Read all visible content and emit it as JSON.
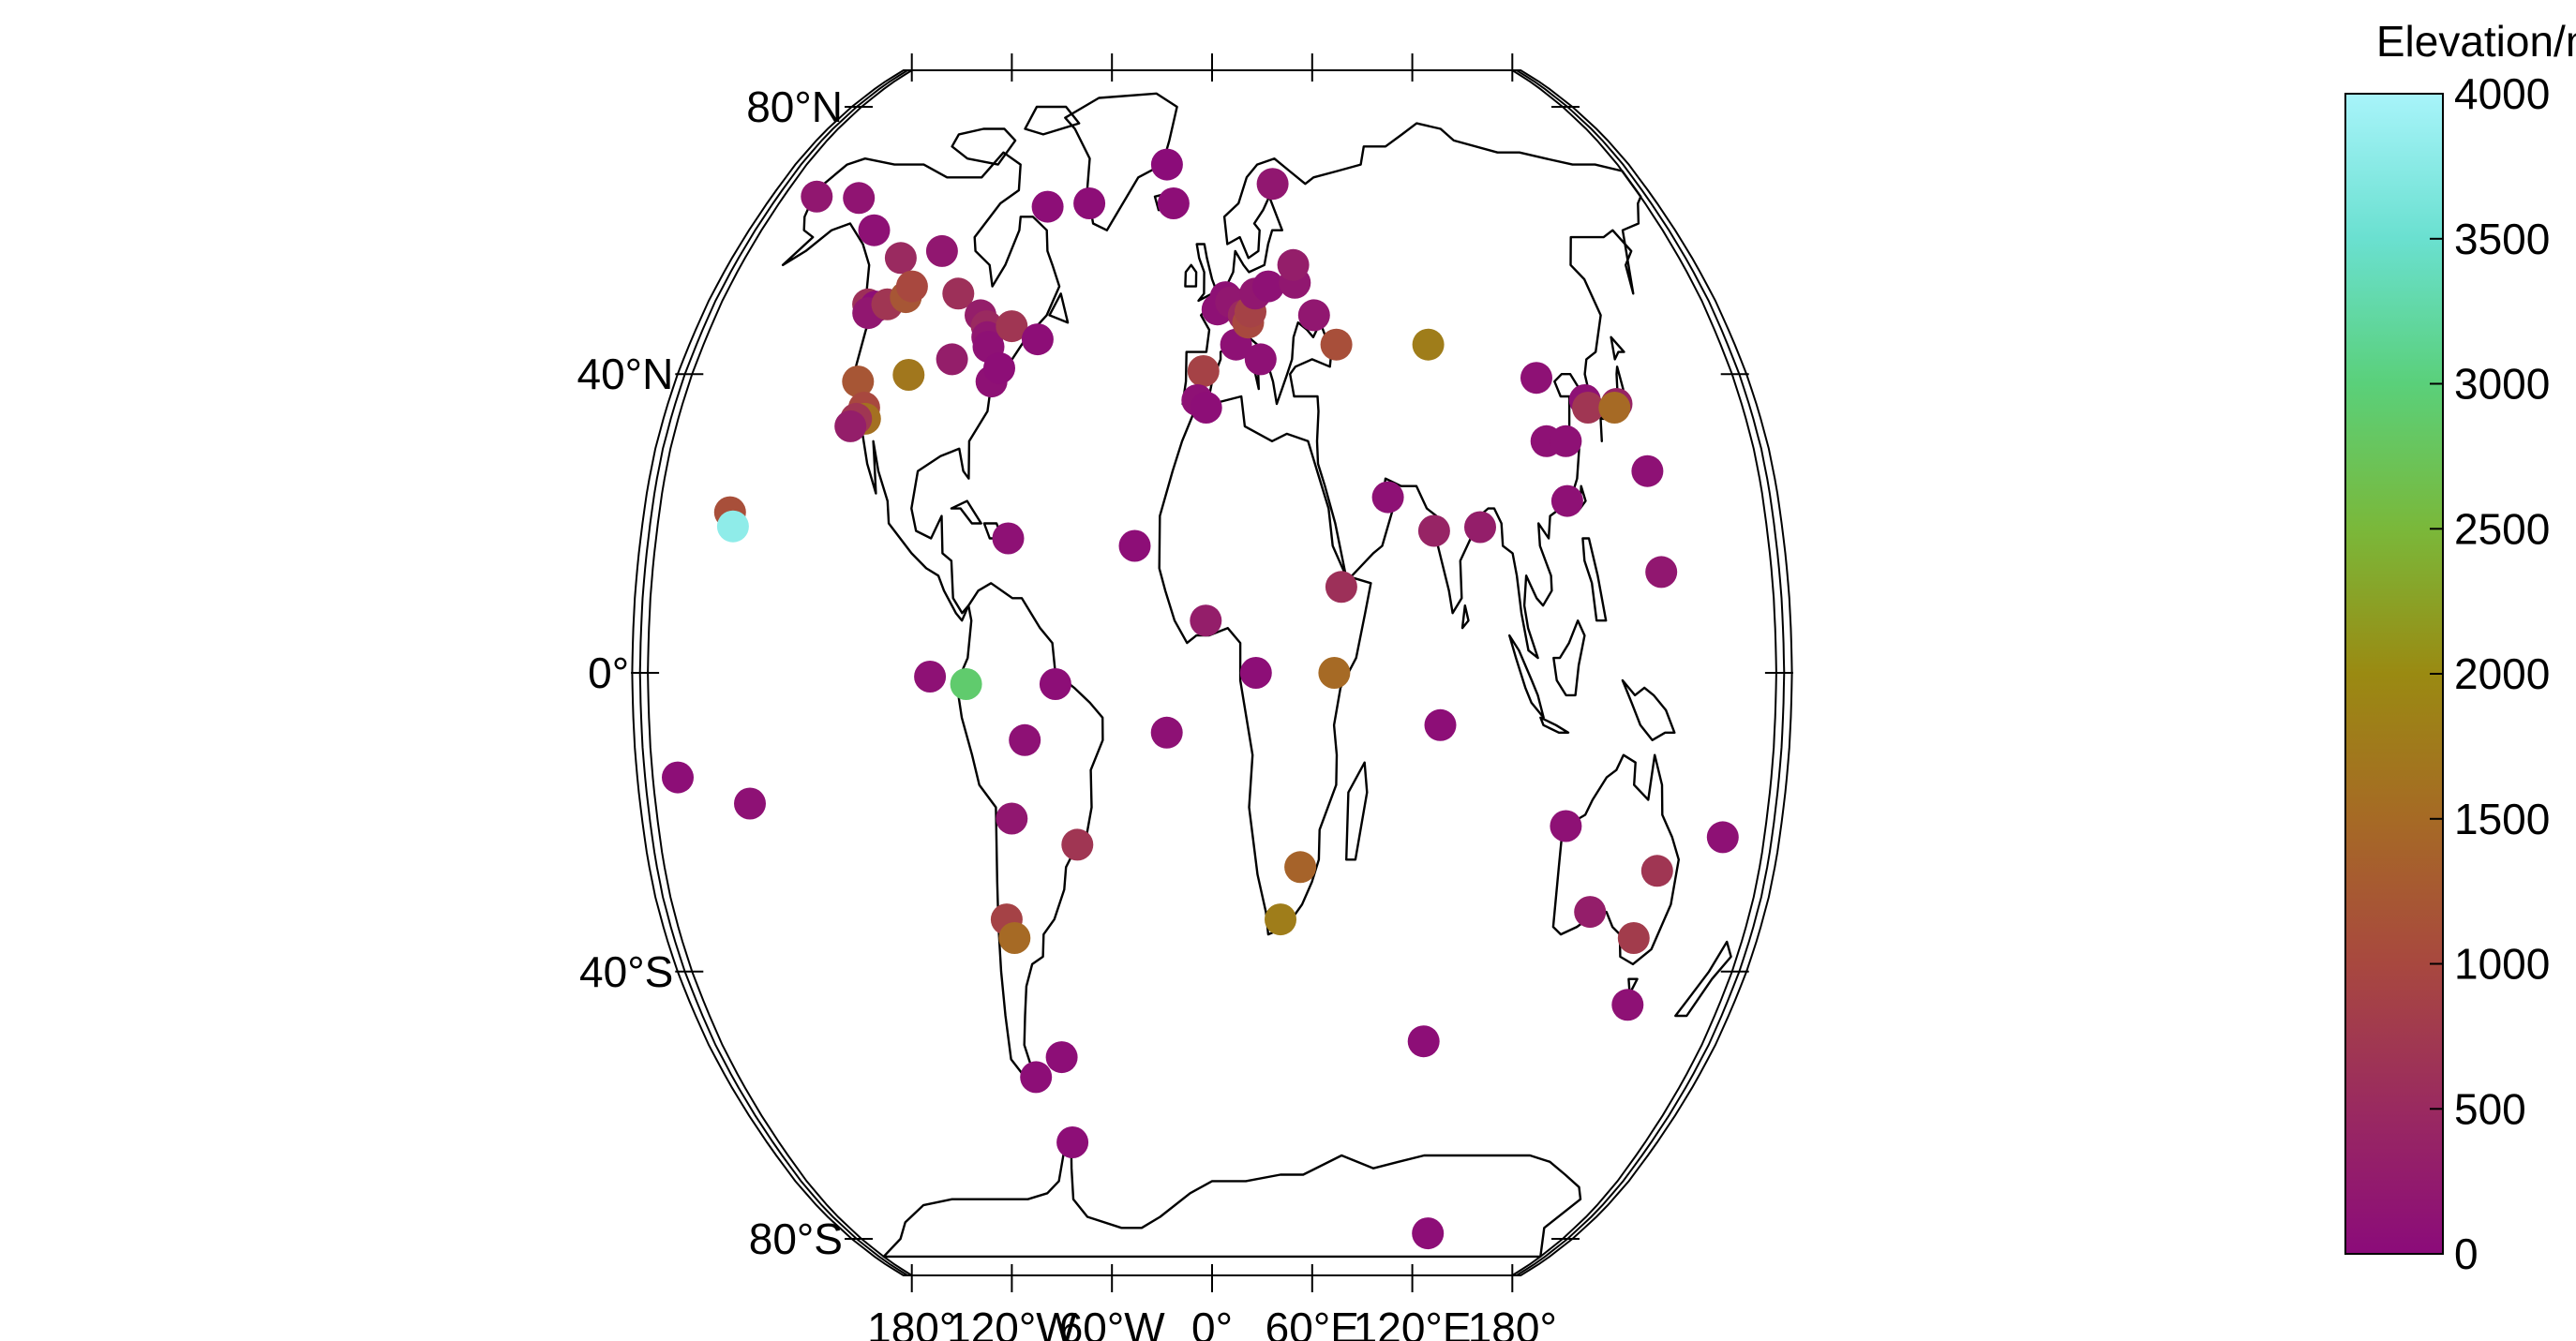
{
  "map": {
    "projection": "Robinson",
    "lat_labels": [
      {
        "lat": 80,
        "text": "80°N"
      },
      {
        "lat": 40,
        "text": "40°N"
      },
      {
        "lat": 0,
        "text": "0°"
      },
      {
        "lat": -40,
        "text": "40°S"
      },
      {
        "lat": -80,
        "text": "80°S"
      }
    ],
    "lon_labels": [
      {
        "lon": -180,
        "text": "180°"
      },
      {
        "lon": -120,
        "text": "120°W"
      },
      {
        "lon": -60,
        "text": "60°W"
      },
      {
        "lon": 0,
        "text": "0°"
      },
      {
        "lon": 60,
        "text": "60°E"
      },
      {
        "lon": 120,
        "text": "120°E"
      },
      {
        "lon": 180,
        "text": "180°"
      }
    ]
  },
  "colorbar": {
    "title": "Elevation/m",
    "min": 0,
    "max": 4000,
    "ticks": [
      {
        "value": 0,
        "text": "0"
      },
      {
        "value": 500,
        "text": "500"
      },
      {
        "value": 1000,
        "text": "1000"
      },
      {
        "value": 1500,
        "text": "1500"
      },
      {
        "value": 2000,
        "text": "2000"
      },
      {
        "value": 2500,
        "text": "2500"
      },
      {
        "value": 3000,
        "text": "3000"
      },
      {
        "value": 3500,
        "text": "3500"
      },
      {
        "value": 4000,
        "text": "4000"
      }
    ],
    "stops": [
      {
        "value": 0,
        "color": "#8b0b7a"
      },
      {
        "value": 500,
        "color": "#9a2a60"
      },
      {
        "value": 1000,
        "color": "#a8483f"
      },
      {
        "value": 1500,
        "color": "#a66a25"
      },
      {
        "value": 2000,
        "color": "#9a8a12"
      },
      {
        "value": 2500,
        "color": "#7ab83a"
      },
      {
        "value": 3000,
        "color": "#5ad07a"
      },
      {
        "value": 3500,
        "color": "#6ae0d0"
      },
      {
        "value": 4000,
        "color": "#a8f4fa"
      }
    ]
  },
  "chart_data": {
    "type": "scatter",
    "x_name": "longitude",
    "y_name": "latitude",
    "value_name": "elevation",
    "points": [
      {
        "lon": -166,
        "lat": 65,
        "elev": 200
      },
      {
        "lon": -148,
        "lat": 64.8,
        "elev": 150
      },
      {
        "lon": -135,
        "lat": 60,
        "elev": 100
      },
      {
        "lon": -105,
        "lat": 57,
        "elev": 200
      },
      {
        "lon": -68,
        "lat": 63.5,
        "elev": 50
      },
      {
        "lon": -51,
        "lat": 64,
        "elev": 50
      },
      {
        "lon": -20,
        "lat": 70,
        "elev": 10
      },
      {
        "lon": -16,
        "lat": 64,
        "elev": 50
      },
      {
        "lon": 26,
        "lat": 67,
        "elev": 200
      },
      {
        "lon": -120,
        "lat": 56,
        "elev": 500
      },
      {
        "lon": -126,
        "lat": 49.5,
        "elev": 600
      },
      {
        "lon": -123,
        "lat": 49.2,
        "elev": 50
      },
      {
        "lon": -125,
        "lat": 48.3,
        "elev": 200
      },
      {
        "lon": -119,
        "lat": 49.5,
        "elev": 700
      },
      {
        "lon": -113,
        "lat": 50.5,
        "elev": 1200
      },
      {
        "lon": -112,
        "lat": 52,
        "elev": 1000
      },
      {
        "lon": -94,
        "lat": 51,
        "elev": 600
      },
      {
        "lon": -84,
        "lat": 48,
        "elev": 300
      },
      {
        "lon": -81,
        "lat": 46.5,
        "elev": 500
      },
      {
        "lon": -80,
        "lat": 45,
        "elev": 200
      },
      {
        "lon": -79,
        "lat": 43.7,
        "elev": 100
      },
      {
        "lon": -72,
        "lat": 46.5,
        "elev": 700
      },
      {
        "lon": -62,
        "lat": 44.7,
        "elev": 50
      },
      {
        "lon": -91,
        "lat": 42,
        "elev": 300
      },
      {
        "lon": -76,
        "lat": 39,
        "elev": 100
      },
      {
        "lon": -74,
        "lat": 40.8,
        "elev": 50
      },
      {
        "lon": -105,
        "lat": 39.9,
        "elev": 1700
      },
      {
        "lon": -122,
        "lat": 39,
        "elev": 1200
      },
      {
        "lon": -118,
        "lat": 35.5,
        "elev": 1000
      },
      {
        "lon": -117,
        "lat": 34,
        "elev": 1600
      },
      {
        "lon": -120,
        "lat": 34,
        "elev": 700
      },
      {
        "lon": -121.5,
        "lat": 33,
        "elev": 300
      },
      {
        "lon": -157,
        "lat": 21.5,
        "elev": 1100
      },
      {
        "lon": -155.5,
        "lat": 19.6,
        "elev": 3800
      },
      {
        "lon": -66,
        "lat": 18,
        "elev": 100
      },
      {
        "lon": -90,
        "lat": -0.5,
        "elev": 100
      },
      {
        "lon": -78.5,
        "lat": -1.5,
        "elev": 2900
      },
      {
        "lon": -50,
        "lat": -1.5,
        "elev": 50
      },
      {
        "lon": -60,
        "lat": -9,
        "elev": 100
      },
      {
        "lon": -25,
        "lat": 17,
        "elev": 50
      },
      {
        "lon": -14.5,
        "lat": -8,
        "elev": 100
      },
      {
        "lon": -172,
        "lat": -14,
        "elev": 50
      },
      {
        "lon": -149.5,
        "lat": -17.5,
        "elev": 100
      },
      {
        "lon": -65,
        "lat": -19.5,
        "elev": 200
      },
      {
        "lon": -44,
        "lat": -23,
        "elev": 700
      },
      {
        "lon": -69,
        "lat": -33,
        "elev": 900
      },
      {
        "lon": -67,
        "lat": -35.5,
        "elev": 1500
      },
      {
        "lon": -67,
        "lat": -54.5,
        "elev": 50
      },
      {
        "lon": -56,
        "lat": -51.7,
        "elev": 50
      },
      {
        "lon": -58,
        "lat": -64,
        "elev": 50
      },
      {
        "lon": 2,
        "lat": 48.8,
        "elev": 100
      },
      {
        "lon": 5,
        "lat": 50.5,
        "elev": 100
      },
      {
        "lon": 7,
        "lat": 49.8,
        "elev": 200
      },
      {
        "lon": 8.5,
        "lat": 44,
        "elev": 100
      },
      {
        "lon": 11.5,
        "lat": 48,
        "elev": 500
      },
      {
        "lon": 13,
        "lat": 47,
        "elev": 1000
      },
      {
        "lon": 14,
        "lat": 48.5,
        "elev": 900
      },
      {
        "lon": 16,
        "lat": 51,
        "elev": 200
      },
      {
        "lon": 21,
        "lat": 52,
        "elev": 100
      },
      {
        "lon": 31,
        "lat": 52.5,
        "elev": 200
      },
      {
        "lon": 31,
        "lat": 55,
        "elev": 300
      },
      {
        "lon": 37,
        "lat": 48,
        "elev": 200
      },
      {
        "lon": 44,
        "lat": 44,
        "elev": 1100
      },
      {
        "lon": -3,
        "lat": 40.4,
        "elev": 900
      },
      {
        "lon": -5,
        "lat": 36.5,
        "elev": 100
      },
      {
        "lon": -2,
        "lat": 35.5,
        "elev": 50
      },
      {
        "lon": 17,
        "lat": 42,
        "elev": 100
      },
      {
        "lon": -2,
        "lat": 7,
        "elev": 300
      },
      {
        "lon": 14,
        "lat": 0,
        "elev": 50
      },
      {
        "lon": 41.5,
        "lat": 11.5,
        "elev": 600
      },
      {
        "lon": 39,
        "lat": 0,
        "elev": 1500
      },
      {
        "lon": 29,
        "lat": -26,
        "elev": 1400
      },
      {
        "lon": 23,
        "lat": -33,
        "elev": 1800
      },
      {
        "lon": 57.5,
        "lat": 23.5,
        "elev": 100
      },
      {
        "lon": 76.5,
        "lat": 44,
        "elev": 1800
      },
      {
        "lon": 72,
        "lat": 19,
        "elev": 400
      },
      {
        "lon": 87,
        "lat": 19.5,
        "elev": 300
      },
      {
        "lon": 73,
        "lat": -7,
        "elev": 50
      },
      {
        "lon": 112,
        "lat": 39.5,
        "elev": 100
      },
      {
        "lon": 111.5,
        "lat": 31,
        "elev": 100
      },
      {
        "lon": 118,
        "lat": 31,
        "elev": 100
      },
      {
        "lon": 116,
        "lat": 23,
        "elev": 100
      },
      {
        "lon": 127,
        "lat": 36.5,
        "elev": 100
      },
      {
        "lon": 127.5,
        "lat": 35.5,
        "elev": 700
      },
      {
        "lon": 137.5,
        "lat": 36,
        "elev": 400
      },
      {
        "lon": 136.5,
        "lat": 35.5,
        "elev": 1500
      },
      {
        "lon": 143.5,
        "lat": 27,
        "elev": 100
      },
      {
        "lon": 144.5,
        "lat": 13.5,
        "elev": 200
      },
      {
        "lon": 115,
        "lat": -20.5,
        "elev": 100
      },
      {
        "lon": 126.5,
        "lat": -32,
        "elev": 300
      },
      {
        "lon": 146.5,
        "lat": -26.5,
        "elev": 700
      },
      {
        "lon": 143,
        "lat": -35.5,
        "elev": 800
      },
      {
        "lon": 166.5,
        "lat": -22,
        "elev": 100
      },
      {
        "lon": 147.5,
        "lat": -44.5,
        "elev": 100
      },
      {
        "lon": 77.5,
        "lat": -49.5,
        "elev": 50
      },
      {
        "lon": 109,
        "lat": -79,
        "elev": 50
      }
    ]
  }
}
